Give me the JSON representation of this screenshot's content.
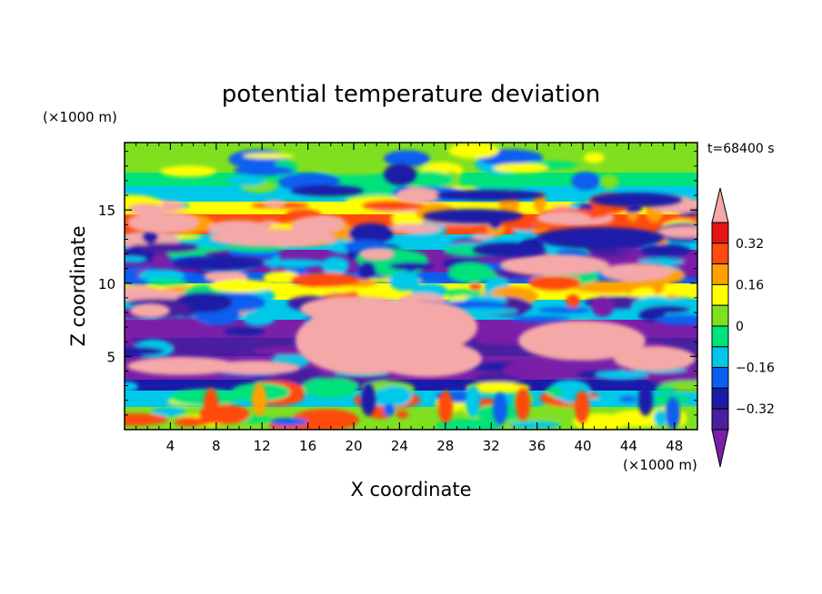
{
  "chart_data": {
    "type": "heatmap",
    "title": "potential temperature deviation",
    "xlabel": "X coordinate",
    "ylabel": "Z coordinate",
    "x_unit": "(×1000 m)",
    "y_unit": "(×1000 m)",
    "time_label": "t=68400 s",
    "xlim": [
      0,
      50
    ],
    "ylim": [
      0,
      19.6
    ],
    "x_ticks": [
      4,
      8,
      12,
      16,
      20,
      24,
      28,
      32,
      36,
      40,
      44,
      48
    ],
    "y_ticks": [
      5,
      10,
      15
    ],
    "colorbar": {
      "levels": [
        -0.4,
        -0.32,
        -0.24,
        -0.16,
        -0.08,
        0,
        0.08,
        0.16,
        0.24,
        0.32,
        0.4
      ],
      "labels": [
        "0.32",
        "0.16",
        "0",
        "−0.16",
        "−0.32"
      ],
      "label_values": [
        0.32,
        0.16,
        0,
        -0.16,
        -0.32
      ],
      "colors": [
        "#7a1fa8",
        "#4a1fa0",
        "#1a1aa8",
        "#0a5ef0",
        "#00c8e8",
        "#00e27a",
        "#7fe020",
        "#ffff00",
        "#ffa000",
        "#ff4a10",
        "#e81414",
        "#f4a8a8"
      ]
    }
  }
}
